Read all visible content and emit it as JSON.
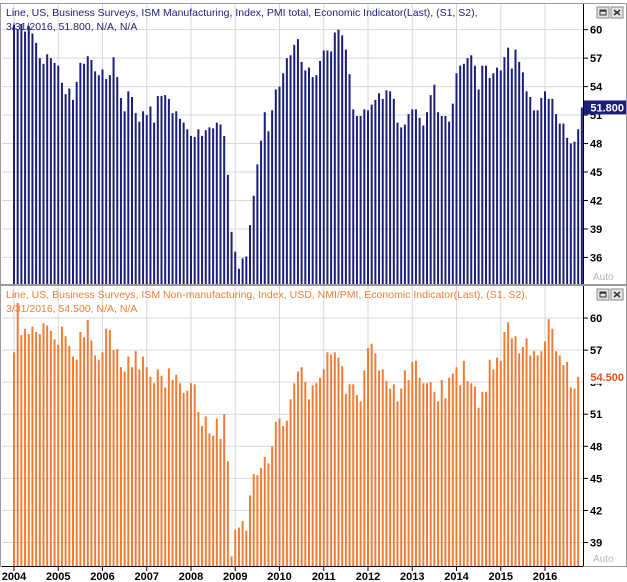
{
  "colors": {
    "top_series": "#1a1f7a",
    "bottom_series": "#f07d35",
    "grid": "#d7d7d7",
    "axis": "#000000",
    "button_fill": "#e6e6e6",
    "button_border": "#888888"
  },
  "window_buttons": [
    {
      "name": "restore-window-icon",
      "glyph": "▭"
    },
    {
      "name": "close-window-icon",
      "glyph": "✕"
    }
  ],
  "chart_data": [
    {
      "type": "bar",
      "title_line1": "Line, US, Business Surveys, ISM Manufacturing, Index, PMI total, Economic Indicator(Last), (S1, S2),",
      "title_line2": "3/31/2016, 51.800, N/A, N/A",
      "last_label": "51.800",
      "scale_badge": "Auto",
      "y_ticks": [
        36,
        39,
        42,
        45,
        48,
        51,
        54,
        57,
        60
      ],
      "ylim": [
        33.2,
        62.7
      ],
      "x_start": 2004.0,
      "x_step": 0.0833333,
      "values": [
        60.5,
        60.0,
        60.6,
        59.8,
        60.4,
        59.6,
        58.6,
        57.0,
        56.4,
        57.4,
        57.0,
        56.5,
        56.2,
        54.4,
        53.2,
        53.8,
        52.6,
        54.5,
        56.5,
        56.4,
        57.2,
        56.8,
        55.6,
        55.2,
        55.8,
        54.8,
        55.2,
        57.1,
        55.0,
        52.8,
        51.4,
        53.5,
        52.9,
        51.2,
        50.3,
        51.4,
        51.0,
        51.9,
        50.2,
        53.0,
        53.0,
        53.1,
        52.7,
        51.2,
        51.4,
        50.6,
        50.2,
        49.5,
        48.8,
        48.7,
        49.5,
        48.8,
        49.4,
        49.7,
        49.6,
        50.2,
        50.0,
        48.8,
        44.7,
        38.7,
        36.6,
        34.8,
        35.9,
        36.1,
        39.4,
        42.5,
        45.8,
        48.3,
        51.3,
        49.3,
        51.5,
        53.7,
        54.0,
        55.4,
        57.0,
        57.3,
        58.4,
        59.0,
        56.6,
        55.7,
        56.0,
        55.0,
        55.2,
        56.7,
        57.8,
        57.8,
        57.7,
        59.7,
        60.0,
        59.4,
        57.9,
        55.3,
        51.6,
        50.9,
        50.9,
        51.6,
        51.5,
        52.1,
        52.6,
        53.3,
        52.7,
        53.6,
        53.5,
        52.7,
        50.2,
        49.7,
        50.0,
        51.1,
        51.6,
        51.6,
        50.7,
        49.9,
        51.3,
        53.1,
        54.2,
        51.3,
        50.9,
        50.9,
        50.3,
        52.2,
        55.4,
        56.2,
        56.4,
        57.0,
        57.3,
        56.2,
        53.7,
        56.2,
        56.2,
        54.9,
        55.4,
        56.0,
        55.7,
        57.1,
        58.1,
        55.9,
        57.9,
        56.6,
        55.5,
        53.5,
        52.9,
        51.5,
        51.5,
        52.8,
        53.5,
        52.7,
        52.7,
        51.1,
        50.1,
        50.1,
        48.6,
        48.0,
        48.2,
        49.5,
        51.8
      ]
    },
    {
      "type": "bar",
      "title_line1": "Line, US, Business Surveys, ISM Non-manufacturing, Index, USD, NMI/PMI, Economic Indicator(Last), (S1, S2),",
      "title_line2": "3/31/2016, 54.500, N/A, N/A",
      "last_label": "54.500",
      "scale_badge": "Auto",
      "y_ticks": [
        39,
        42,
        45,
        48,
        51,
        54,
        57,
        60
      ],
      "ylim": [
        36.8,
        63.0
      ],
      "x_start": 2004.0,
      "x_step": 0.0833333,
      "values": [
        56.8,
        61.4,
        58.4,
        59.0,
        58.5,
        59.2,
        58.7,
        58.5,
        59.5,
        59.3,
        58.8,
        58.0,
        57.5,
        59.2,
        58.3,
        57.4,
        56.4,
        56.1,
        58.7,
        58.2,
        59.8,
        57.9,
        56.5,
        56.1,
        56.8,
        59.0,
        58.9,
        57.0,
        57.1,
        55.4,
        55.0,
        56.4,
        55.4,
        56.9,
        55.2,
        56.4,
        55.4,
        54.5,
        53.9,
        55.2,
        54.6,
        53.5,
        55.3,
        54.2,
        54.7,
        53.9,
        53.0,
        53.2,
        53.9,
        53.8,
        51.2,
        49.9,
        50.8,
        49.2,
        49.0,
        50.6,
        48.7,
        51.0,
        46.6,
        37.7,
        40.2,
        40.4,
        41.0,
        40.1,
        43.4,
        45.4,
        45.3,
        46.0,
        47.0,
        46.4,
        48.0,
        50.3,
        50.6,
        49.9,
        50.4,
        52.4,
        53.9,
        55.0,
        55.4,
        54.0,
        52.4,
        53.7,
        53.9,
        54.4,
        55.2,
        56.8,
        56.6,
        56.8,
        56.3,
        55.5,
        52.9,
        53.8,
        53.8,
        52.8,
        52.2,
        55.1,
        57.2,
        57.6,
        56.7,
        55.1,
        55.2,
        54.1,
        53.4,
        53.8,
        52.2,
        53.4,
        55.1,
        54.2,
        55.9,
        56.0,
        54.4,
        53.9,
        53.9,
        54.0,
        53.1,
        52.2,
        54.2,
        52.5,
        54.4,
        54.8,
        55.4,
        53.7,
        56.0,
        54.1,
        53.9,
        53.6,
        51.6,
        53.1,
        53.1,
        56.1,
        55.2,
        56.3,
        56.0,
        58.7,
        59.6,
        58.1,
        58.3,
        56.7,
        57.3,
        58.1,
        56.5,
        56.9,
        56.5,
        56.9,
        57.8,
        59.9,
        59.0,
        56.9,
        56.5,
        55.6,
        55.9,
        53.5,
        53.4,
        54.5
      ]
    }
  ],
  "x_axis": {
    "labels": [
      "2004",
      "2005",
      "2006",
      "2007",
      "2008",
      "2009",
      "2010",
      "2011",
      "2012",
      "2013",
      "2014",
      "2015",
      "2016"
    ]
  }
}
